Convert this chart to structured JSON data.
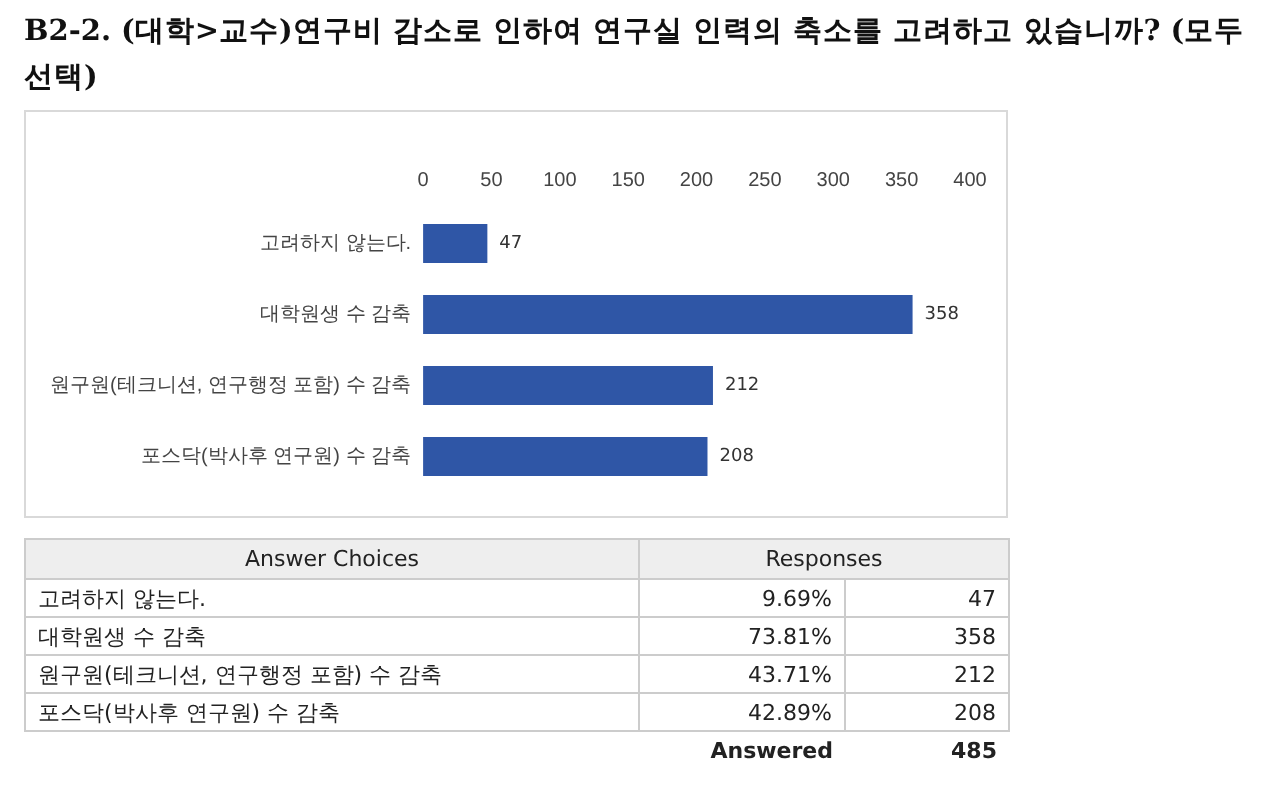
{
  "chart_data": {
    "type": "bar",
    "orientation": "horizontal",
    "title": "B2-2. (대학>교수)연구비 감소로 인하여 연구실 인력의 축소를 고려하고 있습니까? (모두 선택)",
    "categories": [
      "고려하지 않는다.",
      "대학원생 수 감축",
      "원구원(테크니션, 연구행정 포함) 수 감축",
      "포스닥(박사후 연구원) 수 감축"
    ],
    "values": [
      47,
      358,
      212,
      208
    ],
    "color": "#2f56a6",
    "xlim": [
      0,
      400
    ],
    "xticks": [
      0,
      50,
      100,
      150,
      200,
      250,
      300,
      350,
      400
    ],
    "grid": false,
    "data_labels": true,
    "annotations": [
      "Answer Choices",
      "Responses",
      "9.69%",
      "73.81%",
      "43.71%",
      "42.89%",
      "Answered",
      "485",
      "47",
      "358",
      "212",
      "208"
    ]
  }
}
